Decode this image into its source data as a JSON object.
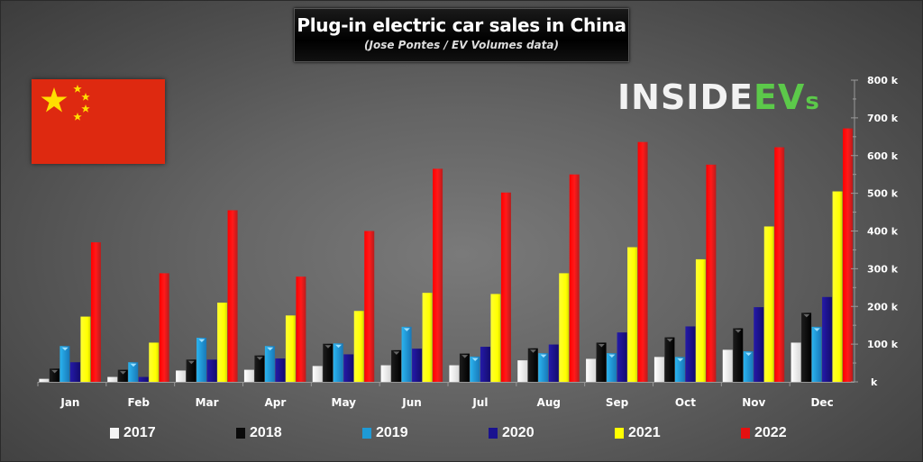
{
  "logo": {
    "part1": "INSIDE",
    "part2": "EV",
    "part3": "s"
  },
  "flag": {
    "name": "China"
  },
  "chart_data": {
    "type": "bar",
    "title": "Plug-in electric car sales in China",
    "subtitle": "(Jose Pontes / EV Volumes data)",
    "xlabel": "",
    "ylabel": "",
    "ylim": [
      0,
      800
    ],
    "y_unit": "k",
    "y_ticks": [
      {
        "value": 0,
        "label": "k"
      },
      {
        "value": 100,
        "label": "100 k"
      },
      {
        "value": 200,
        "label": "200 k"
      },
      {
        "value": 300,
        "label": "300 k"
      },
      {
        "value": 400,
        "label": "400 k"
      },
      {
        "value": 500,
        "label": "500 k"
      },
      {
        "value": 600,
        "label": "600 k"
      },
      {
        "value": 700,
        "label": "700 k"
      },
      {
        "value": 800,
        "label": "800 k"
      }
    ],
    "y_axis_position": "right",
    "legend_position": "bottom",
    "grid": false,
    "categories": [
      "Jan",
      "Feb",
      "Mar",
      "Apr",
      "May",
      "Jun",
      "Jul",
      "Aug",
      "Sep",
      "Oct",
      "Nov",
      "Dec"
    ],
    "series": [
      {
        "name": "2017",
        "color": "#f4f4f4",
        "values": [
          8,
          13,
          30,
          32,
          42,
          44,
          44,
          57,
          61,
          66,
          85,
          104
        ]
      },
      {
        "name": "2018",
        "color": "#0a0a0a",
        "values": [
          35,
          32,
          59,
          70,
          101,
          84,
          75,
          89,
          104,
          118,
          142,
          183
        ]
      },
      {
        "name": "2019",
        "color": "#1e9ad6",
        "values": [
          95,
          52,
          117,
          95,
          102,
          146,
          67,
          76,
          76,
          66,
          81,
          146
        ]
      },
      {
        "name": "2020",
        "color": "#1a128f",
        "values": [
          52,
          13,
          59,
          62,
          73,
          88,
          93,
          99,
          131,
          147,
          198,
          225
        ]
      },
      {
        "name": "2021",
        "color": "#ffff00",
        "values": [
          173,
          104,
          210,
          176,
          188,
          236,
          233,
          288,
          357,
          325,
          412,
          505
        ]
      },
      {
        "name": "2022",
        "color": "#e51010",
        "values": [
          370,
          288,
          455,
          279,
          400,
          565,
          502,
          550,
          636,
          576,
          622,
          672
        ]
      }
    ]
  }
}
